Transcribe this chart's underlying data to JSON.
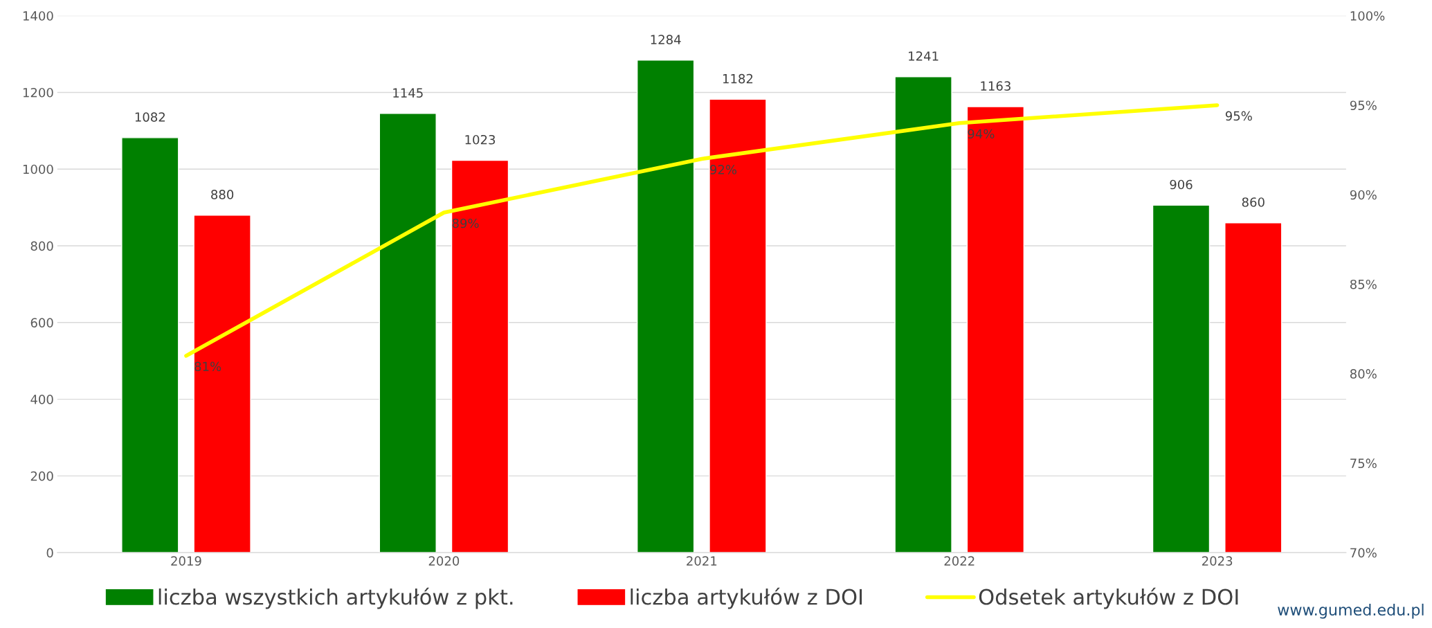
{
  "chart_data": {
    "type": "bar",
    "categories": [
      "2019",
      "2020",
      "2021",
      "2022",
      "2023"
    ],
    "series": [
      {
        "name": "liczba wszystkich artykułów z pkt.",
        "color": "#008000",
        "values": [
          1082,
          1145,
          1284,
          1241,
          906
        ]
      },
      {
        "name": "liczba artykułów z DOI",
        "color": "#ff0000",
        "values": [
          880,
          1023,
          1182,
          1163,
          860
        ]
      },
      {
        "name": "Odsetek artykułów z DOI",
        "color": "#ffff00",
        "type": "line",
        "axis": "y2",
        "marker": "none",
        "values": [
          81,
          89,
          92,
          94,
          95
        ],
        "value_labels": [
          "81%",
          "89%",
          "92%",
          "94%",
          "95%"
        ]
      }
    ],
    "ylim": [
      0,
      1400
    ],
    "yticks": [
      0,
      200,
      400,
      600,
      800,
      1000,
      1200,
      1400
    ],
    "y2lim": [
      70,
      100
    ],
    "y2ticks": [
      {
        "value": 70,
        "label": "70%"
      },
      {
        "value": 75,
        "label": "75%"
      },
      {
        "value": 80,
        "label": "80%"
      },
      {
        "value": 85,
        "label": "85%"
      },
      {
        "value": 90,
        "label": "90%"
      },
      {
        "value": 95,
        "label": "95%"
      },
      {
        "value": 100,
        "label": "100%"
      }
    ],
    "grid": "y",
    "legend": "bottom",
    "data_labels": true,
    "annotations": [
      "www.gumed.edu.pl"
    ]
  }
}
